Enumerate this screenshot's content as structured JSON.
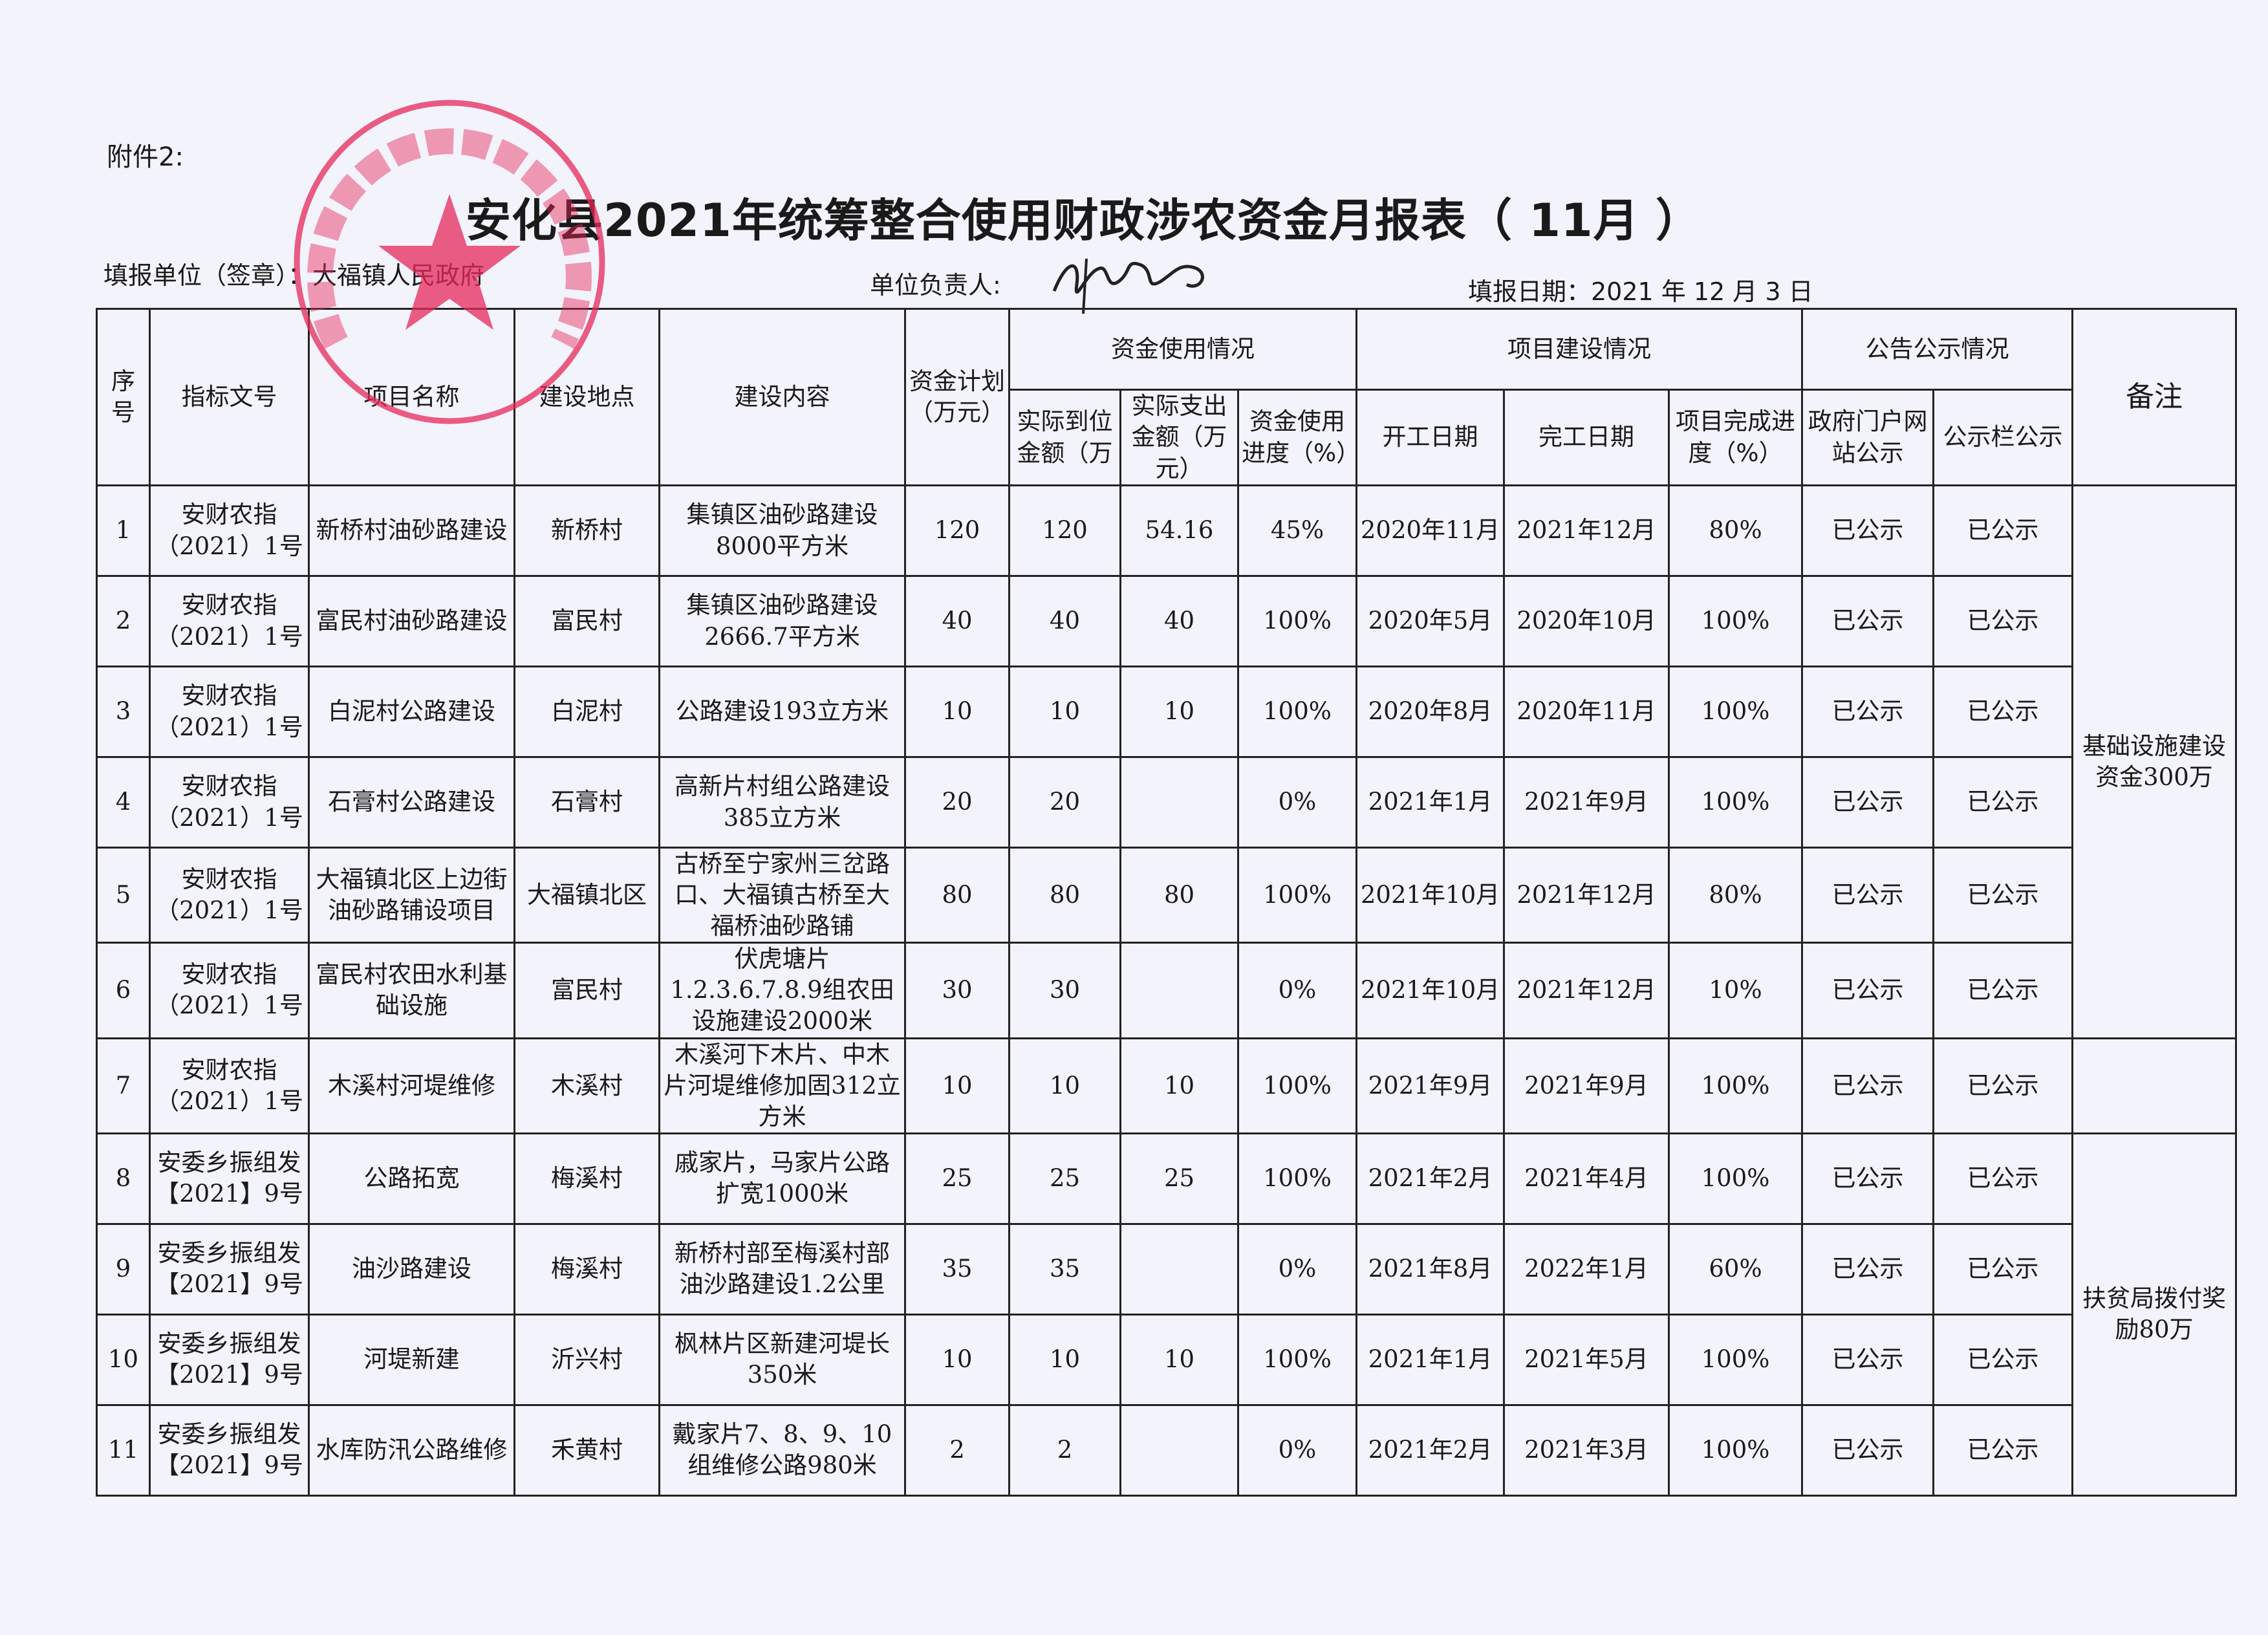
{
  "attachment_label": "附件2:",
  "title": "安化县2021年统筹整合使用财政涉农资金月报表（ 11月 ）",
  "unit_label": "填报单位（签章）：大福镇人民政府",
  "leader_label": "单位负责人:",
  "signature": "签名",
  "date_label": "填报日期：2021 年 12 月 3 日",
  "stamp_text": "安化县大福镇人民政府",
  "stamp_color": "#e6285a",
  "headers": {
    "seq": "序号",
    "doc_no": "指标文号",
    "project": "项目名称",
    "location": "建设地点",
    "content": "建设内容",
    "plan": "资金计划（万元）",
    "fund_usage": "资金使用情况",
    "received": "实际到位金额（万",
    "spent": "实际支出金额（万元）",
    "usage_progress": "资金使用进度（%）",
    "construction": "项目建设情况",
    "start": "开工日期",
    "end": "完工日期",
    "completion": "项目完成进度（%）",
    "publicity": "公告公示情况",
    "gov_site": "政府门户网站公示",
    "board": "公示栏公示",
    "remark": "备注"
  },
  "rows": [
    [
      "1",
      "安财农指（2021）1号",
      "新桥村油砂路建设",
      "新桥村",
      "集镇区油砂路建设8000平方米",
      "120",
      "120",
      "54.16",
      "45%",
      "2020年11月",
      "2021年12月",
      "80%",
      "已公示",
      "已公示"
    ],
    [
      "2",
      "安财农指（2021）1号",
      "富民村油砂路建设",
      "富民村",
      "集镇区油砂路建设2666.7平方米",
      "40",
      "40",
      "40",
      "100%",
      "2020年5月",
      "2020年10月",
      "100%",
      "已公示",
      "已公示"
    ],
    [
      "3",
      "安财农指（2021）1号",
      "白泥村公路建设",
      "白泥村",
      "公路建设193立方米",
      "10",
      "10",
      "10",
      "100%",
      "2020年8月",
      "2020年11月",
      "100%",
      "已公示",
      "已公示"
    ],
    [
      "4",
      "安财农指（2021）1号",
      "石膏村公路建设",
      "石膏村",
      "高新片村组公路建设385立方米",
      "20",
      "20",
      "",
      "0%",
      "2021年1月",
      "2021年9月",
      "100%",
      "已公示",
      "已公示"
    ],
    [
      "5",
      "安财农指（2021）1号",
      "大福镇北区上边街油砂路铺设项目",
      "大福镇北区",
      "古桥至宁家州三岔路口、大福镇古桥至大福桥油砂路铺",
      "80",
      "80",
      "80",
      "100%",
      "2021年10月",
      "2021年12月",
      "80%",
      "已公示",
      "已公示"
    ],
    [
      "6",
      "安财农指（2021）1号",
      "富民村农田水利基础设施",
      "富民村",
      "伏虎塘片1.2.3.6.7.8.9组农田设施建设2000米",
      "30",
      "30",
      "",
      "0%",
      "2021年10月",
      "2021年12月",
      "10%",
      "已公示",
      "已公示"
    ],
    [
      "7",
      "安财农指（2021）1号",
      "木溪村河堤维修",
      "木溪村",
      "木溪河下木片、中木片河堤维修加固312立方米",
      "10",
      "10",
      "10",
      "100%",
      "2021年9月",
      "2021年9月",
      "100%",
      "已公示",
      "已公示"
    ],
    [
      "8",
      "安委乡振组发【2021】9号",
      "公路拓宽",
      "梅溪村",
      "戚家片，马家片公路扩宽1000米",
      "25",
      "25",
      "25",
      "100%",
      "2021年2月",
      "2021年4月",
      "100%",
      "已公示",
      "已公示"
    ],
    [
      "9",
      "安委乡振组发【2021】9号",
      "油沙路建设",
      "梅溪村",
      "新桥村部至梅溪村部油沙路建设1.2公里",
      "35",
      "35",
      "",
      "0%",
      "2021年8月",
      "2022年1月",
      "60%",
      "已公示",
      "已公示"
    ],
    [
      "10",
      "安委乡振组发【2021】9号",
      "河堤新建",
      "沂兴村",
      "枫林片区新建河堤长350米",
      "10",
      "10",
      "10",
      "100%",
      "2021年1月",
      "2021年5月",
      "100%",
      "已公示",
      "已公示"
    ],
    [
      "11",
      "安委乡振组发【2021】9号",
      "水库防汛公路维修",
      "禾黄村",
      "戴家片7、8、9、10组维修公路980米",
      "2",
      "2",
      "",
      "0%",
      "2021年2月",
      "2021年3月",
      "100%",
      "已公示",
      "已公示"
    ]
  ],
  "remarks": [
    {
      "text": "基础设施建设资金300万",
      "rows": 6
    },
    {
      "text": "",
      "rows": 1
    },
    {
      "text": "扶贫局拨付奖励80万",
      "rows": 4
    }
  ]
}
